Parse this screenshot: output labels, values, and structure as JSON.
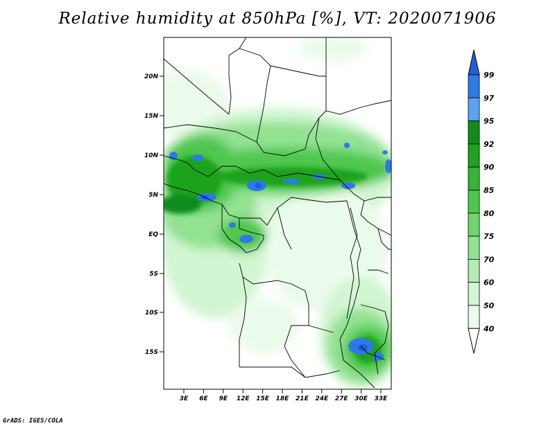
{
  "title": "Relative humidity at 850hPa [%], VT: 2020071906",
  "credit": "GrADS: IGES/COLA",
  "map": {
    "lat_labels": [
      "20N",
      "15N",
      "10N",
      "5N",
      "EQ",
      "5S",
      "10S",
      "15S"
    ],
    "lon_labels": [
      "3E",
      "6E",
      "9E",
      "12E",
      "15E",
      "18E",
      "21E",
      "24E",
      "27E",
      "30E",
      "33E"
    ]
  },
  "colorbar": {
    "labels": [
      "99",
      "97",
      "95",
      "92",
      "90",
      "85",
      "80",
      "75",
      "70",
      "60",
      "50",
      "40"
    ],
    "colors": [
      "#1f5fd9",
      "#2e79e6",
      "#5aa3f2",
      "#108c1a",
      "#1fa31f",
      "#34b534",
      "#4fc74f",
      "#6fd66f",
      "#92e292",
      "#b4edb4",
      "#d2f5d2",
      "#ebfbeb",
      "#ffffff"
    ]
  }
}
